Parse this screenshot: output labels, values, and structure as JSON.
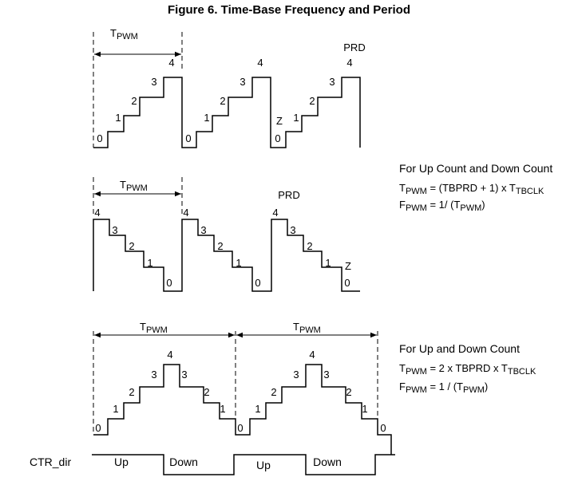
{
  "title": "Figure 6. Time-Base Frequency and Period",
  "up_count": {
    "tpwm": {
      "main": "T",
      "sub": "PWM"
    },
    "prd": "PRD",
    "zero": "Z",
    "periods": [
      [
        "0",
        "1",
        "2",
        "3",
        "4"
      ],
      [
        "0",
        "1",
        "2",
        "3",
        "4"
      ],
      [
        "0",
        "1",
        "2",
        "3",
        "4"
      ]
    ]
  },
  "down_count": {
    "tpwm": {
      "main": "T",
      "sub": "PWM"
    },
    "prd": "PRD",
    "zero": "Z",
    "periods": [
      [
        "4",
        "3",
        "2",
        "1",
        "0"
      ],
      [
        "4",
        "3",
        "2",
        "1",
        "0"
      ],
      [
        "4",
        "3",
        "2",
        "1",
        "0"
      ]
    ]
  },
  "up_down": {
    "tpwm": [
      {
        "main": "T",
        "sub": "PWM"
      },
      {
        "main": "T",
        "sub": "PWM"
      }
    ],
    "periods": [
      [
        "0",
        "1",
        "2",
        "3",
        "4",
        "3",
        "2",
        "1"
      ],
      [
        "0",
        "1",
        "2",
        "3",
        "4",
        "3",
        "2",
        "1"
      ]
    ],
    "end_label": "0"
  },
  "note_single": {
    "heading": "For Up Count and Down Count",
    "period": [
      {
        "t": "T"
      },
      {
        "t": "PWM",
        "sub": true
      },
      {
        "t": " = (TBPRD + 1) x T"
      },
      {
        "t": "TBCLK",
        "sub": true
      }
    ],
    "frequency": [
      {
        "t": "F"
      },
      {
        "t": "PWM",
        "sub": true
      },
      {
        "t": " = 1/ (T"
      },
      {
        "t": "PWM",
        "sub": true
      },
      {
        "t": ")"
      }
    ]
  },
  "note_updown": {
    "heading": "For Up and Down Count",
    "period": [
      {
        "t": "T"
      },
      {
        "t": "PWM",
        "sub": true
      },
      {
        "t": " = 2 x TBPRD x T"
      },
      {
        "t": "TBCLK",
        "sub": true
      }
    ],
    "frequency": [
      {
        "t": "F"
      },
      {
        "t": "PWM",
        "sub": true
      },
      {
        "t": " = 1 / (T"
      },
      {
        "t": "PWM",
        "sub": true
      },
      {
        "t": ")"
      }
    ]
  },
  "ctr_dir": {
    "label": "CTR_dir",
    "states": [
      "Up",
      "Down",
      "Up",
      "Down"
    ]
  }
}
